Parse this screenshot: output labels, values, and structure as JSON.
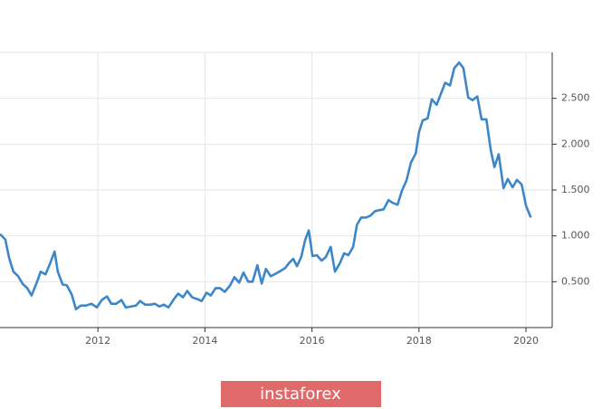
{
  "chart_data": {
    "type": "line",
    "watermark": "instaforex",
    "x": [
      2010.17,
      2010.27,
      2010.34,
      2010.42,
      2010.51,
      2010.59,
      2010.68,
      2010.76,
      2010.85,
      2010.93,
      2011.02,
      2011.1,
      2011.19,
      2011.25,
      2011.34,
      2011.42,
      2011.51,
      2011.59,
      2011.68,
      2011.78,
      2011.88,
      2011.98,
      2012.07,
      2012.17,
      2012.25,
      2012.34,
      2012.44,
      2012.52,
      2012.62,
      2012.71,
      2012.79,
      2012.88,
      2012.98,
      2013.06,
      2013.15,
      2013.23,
      2013.32,
      2013.42,
      2013.5,
      2013.59,
      2013.67,
      2013.76,
      2013.86,
      2013.94,
      2014.03,
      2014.11,
      2014.2,
      2014.28,
      2014.37,
      2014.47,
      2014.55,
      2014.64,
      2014.72,
      2014.81,
      2014.89,
      2014.98,
      2015.06,
      2015.14,
      2015.23,
      2015.33,
      2015.42,
      2015.5,
      2015.58,
      2015.65,
      2015.72,
      2015.8,
      2015.87,
      2015.94,
      2016.01,
      2016.09,
      2016.18,
      2016.26,
      2016.35,
      2016.43,
      2016.52,
      2016.6,
      2016.68,
      2016.77,
      2016.84,
      2016.92,
      2017.01,
      2017.09,
      2017.18,
      2017.26,
      2017.34,
      2017.43,
      2017.51,
      2017.6,
      2017.68,
      2017.77,
      2017.85,
      2017.94,
      2018.0,
      2018.07,
      2018.16,
      2018.24,
      2018.33,
      2018.41,
      2018.49,
      2018.58,
      2018.66,
      2018.75,
      2018.83,
      2018.92,
      2019.0,
      2019.09,
      2019.17,
      2019.26,
      2019.34,
      2019.41,
      2019.49,
      2019.58,
      2019.66,
      2019.75,
      2019.83,
      2019.92,
      2020.0,
      2020.09
    ],
    "series": [
      {
        "color": "#3d87c9",
        "values": [
          1.02,
          0.96,
          0.76,
          0.61,
          0.56,
          0.48,
          0.43,
          0.35,
          0.48,
          0.61,
          0.58,
          0.69,
          0.83,
          0.61,
          0.47,
          0.46,
          0.36,
          0.2,
          0.24,
          0.24,
          0.26,
          0.22,
          0.3,
          0.34,
          0.26,
          0.26,
          0.3,
          0.22,
          0.23,
          0.24,
          0.29,
          0.25,
          0.25,
          0.26,
          0.23,
          0.25,
          0.22,
          0.31,
          0.37,
          0.33,
          0.4,
          0.33,
          0.31,
          0.29,
          0.38,
          0.35,
          0.43,
          0.43,
          0.39,
          0.46,
          0.55,
          0.49,
          0.6,
          0.5,
          0.5,
          0.68,
          0.48,
          0.64,
          0.56,
          0.59,
          0.62,
          0.65,
          0.71,
          0.75,
          0.67,
          0.77,
          0.95,
          1.06,
          0.78,
          0.79,
          0.73,
          0.77,
          0.88,
          0.61,
          0.7,
          0.81,
          0.79,
          0.88,
          1.12,
          1.2,
          1.2,
          1.22,
          1.27,
          1.28,
          1.29,
          1.39,
          1.36,
          1.34,
          1.49,
          1.61,
          1.8,
          1.9,
          2.13,
          2.26,
          2.28,
          2.49,
          2.43,
          2.55,
          2.67,
          2.64,
          2.83,
          2.89,
          2.83,
          2.51,
          2.48,
          2.52,
          2.27,
          2.27,
          1.94,
          1.75,
          1.89,
          1.52,
          1.62,
          1.53,
          1.61,
          1.56,
          1.33,
          1.2
        ]
      }
    ],
    "xlim": [
      2010.17,
      2020.49
    ],
    "xticks": [
      2012,
      2014,
      2016,
      2018,
      2020
    ],
    "ylim": [
      0.02,
      3.0
    ],
    "yticks": [
      {
        "value": 0.5,
        "label": "0.500"
      },
      {
        "value": 1.0,
        "label": "1.000"
      },
      {
        "value": 1.5,
        "label": "1.500"
      },
      {
        "value": 2.0,
        "label": "2.000"
      },
      {
        "value": 2.5,
        "label": "2.500"
      }
    ],
    "grid": true
  }
}
